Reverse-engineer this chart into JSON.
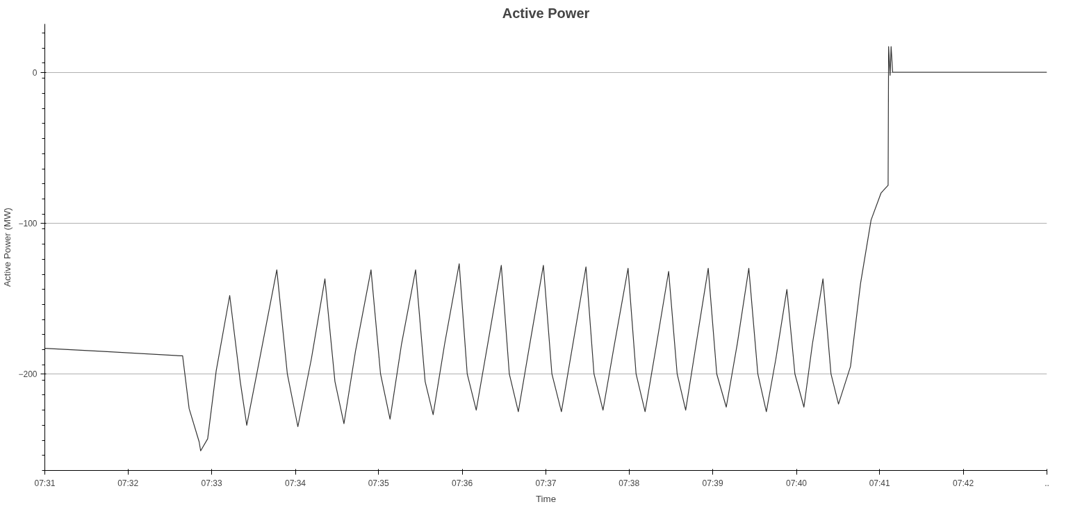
{
  "chart_data": {
    "type": "line",
    "title": "Active Power",
    "xlabel": "Time",
    "ylabel": "Active Power (MW)",
    "x": [
      7.5167,
      7.5279,
      7.5439,
      7.5442,
      7.5455,
      7.5475,
      7.5478,
      7.5492,
      7.5509,
      7.5536,
      7.5557,
      7.557,
      7.559,
      7.563,
      7.5651,
      7.5672,
      7.5699,
      7.5726,
      7.5746,
      7.5764,
      7.5787,
      7.5818,
      7.5837,
      7.5856,
      7.5879,
      7.5907,
      7.5926,
      7.5942,
      7.5965,
      7.5994,
      7.601,
      7.6028,
      7.6051,
      7.6078,
      7.6094,
      7.6112,
      7.6135,
      7.6162,
      7.6179,
      7.6198,
      7.6221,
      7.6247,
      7.6263,
      7.6281,
      7.6304,
      7.6331,
      7.6347,
      7.6365,
      7.6387,
      7.6412,
      7.6429,
      7.6446,
      7.6466,
      7.6491,
      7.6508,
      7.6527,
      7.6549,
      7.6572,
      7.659,
      7.6607,
      7.6626,
      7.6648,
      7.6664,
      7.6682,
      7.6699,
      7.672,
      7.6736,
      7.6751,
      7.6775,
      7.6795,
      7.6816,
      7.6836,
      7.685,
      7.6851,
      7.6854,
      7.6856,
      7.6859,
      7.7167
    ],
    "series": [
      {
        "color": "#333333",
        "values": [
          -183,
          -185,
          -188,
          -188,
          -223,
          -245,
          -251,
          -243,
          -198,
          -148,
          -205,
          -234,
          -200,
          -131,
          -200,
          -235,
          -190,
          -137,
          -205,
          -233,
          -185,
          -131,
          -200,
          -230,
          -180,
          -131,
          -205,
          -227,
          -180,
          -127,
          -200,
          -224,
          -180,
          -128,
          -200,
          -225,
          -180,
          -128,
          -200,
          -225,
          -180,
          -129,
          -200,
          -224,
          -180,
          -130,
          -200,
          -225,
          -182,
          -132,
          -200,
          -224,
          -182,
          -130,
          -200,
          -222,
          -180,
          -130,
          -200,
          -225,
          -190,
          -144,
          -200,
          -222,
          -180,
          -137,
          -200,
          -220,
          -195,
          -140,
          -98,
          -80,
          -75,
          17,
          -2,
          17,
          0,
          0
        ]
      }
    ],
    "xlim": [
      7.5167,
      7.7167
    ],
    "xticks": [
      {
        "value": 7.5167,
        "label": "07:31"
      },
      {
        "value": 7.5333,
        "label": "07:32"
      },
      {
        "value": 7.55,
        "label": "07:33"
      },
      {
        "value": 7.5667,
        "label": "07:34"
      },
      {
        "value": 7.5833,
        "label": "07:35"
      },
      {
        "value": 7.6,
        "label": "07:36"
      },
      {
        "value": 7.6167,
        "label": "07:37"
      },
      {
        "value": 7.6333,
        "label": "07:38"
      },
      {
        "value": 7.65,
        "label": "07:39"
      },
      {
        "value": 7.6667,
        "label": "07:40"
      },
      {
        "value": 7.6833,
        "label": "07:41"
      },
      {
        "value": 7.7,
        "label": "07:42"
      },
      {
        "value": 7.7167,
        "label": ".."
      }
    ],
    "ylim": [
      -264,
      32
    ],
    "yticks": [
      0,
      -100,
      -200
    ],
    "grid": "y",
    "marker": "none",
    "line_style": "solid"
  }
}
